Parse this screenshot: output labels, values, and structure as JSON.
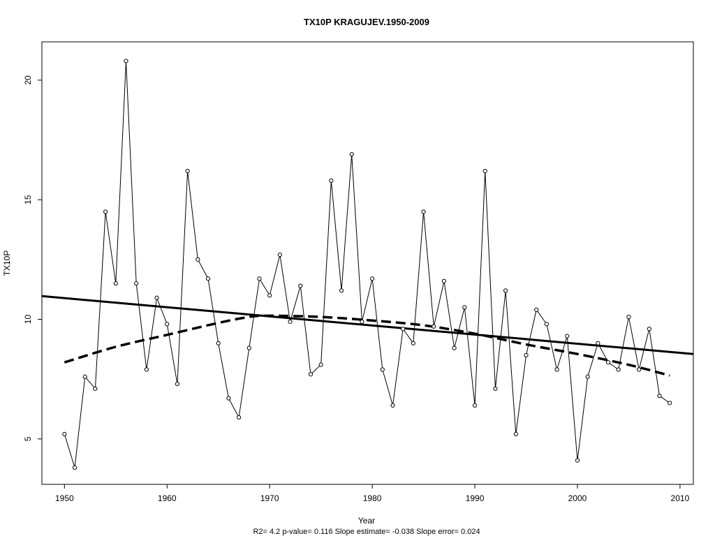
{
  "chart_data": {
    "type": "line",
    "title": "TX10P   KRAGUJEV.1950-2009",
    "xlabel": "Year",
    "ylabel": "TX10P",
    "footer": "R2= 4.2  p-value= 0.116  Slope estimate= -0.038  Slope error= 0.024",
    "xlim": [
      1947.8,
      2011.3
    ],
    "ylim": [
      3.1,
      21.6
    ],
    "x_ticks": [
      1950,
      1960,
      1970,
      1980,
      1990,
      2000,
      2010
    ],
    "y_ticks": [
      5,
      10,
      15,
      20
    ],
    "grid": false,
    "x": [
      1950,
      1951,
      1952,
      1953,
      1954,
      1955,
      1956,
      1957,
      1958,
      1959,
      1960,
      1961,
      1962,
      1963,
      1964,
      1965,
      1966,
      1967,
      1968,
      1969,
      1970,
      1971,
      1972,
      1973,
      1974,
      1975,
      1976,
      1977,
      1978,
      1979,
      1980,
      1981,
      1982,
      1983,
      1984,
      1985,
      1986,
      1987,
      1988,
      1989,
      1990,
      1991,
      1992,
      1993,
      1994,
      1995,
      1996,
      1997,
      1998,
      1999,
      2000,
      2001,
      2002,
      2003,
      2004,
      2005,
      2006,
      2007,
      2008,
      2009
    ],
    "series": [
      {
        "style": "thin line with circle markers",
        "values": [
          5.2,
          3.8,
          7.6,
          7.1,
          14.5,
          11.5,
          20.8,
          11.5,
          7.9,
          10.9,
          9.8,
          7.3,
          16.2,
          12.5,
          11.7,
          9.0,
          6.7,
          5.9,
          8.8,
          11.7,
          11.0,
          12.7,
          9.9,
          11.4,
          7.7,
          8.1,
          15.8,
          11.2,
          16.9,
          9.9,
          11.7,
          7.9,
          6.4,
          9.6,
          9.0,
          14.5,
          9.7,
          11.6,
          8.8,
          10.5,
          6.4,
          16.2,
          7.1,
          11.2,
          5.2,
          8.5,
          10.4,
          9.8,
          7.9,
          9.3,
          4.1,
          7.6,
          9.0,
          8.2,
          7.9,
          10.1,
          7.9,
          9.6,
          6.8,
          6.5
        ]
      },
      {
        "style": "solid thick linear trend",
        "x": [
          1947.8,
          2011.3
        ],
        "values": [
          10.97,
          8.55
        ]
      },
      {
        "style": "dashed thick smoothed trend",
        "x": [
          1950,
          1955,
          1960,
          1965,
          1968,
          1970,
          1975,
          1980,
          1985,
          1990,
          1995,
          2000,
          2005,
          2009
        ],
        "values": [
          8.2,
          8.85,
          9.35,
          9.85,
          10.1,
          10.15,
          10.1,
          9.95,
          9.75,
          9.4,
          8.95,
          8.55,
          8.1,
          7.65
        ]
      }
    ]
  }
}
